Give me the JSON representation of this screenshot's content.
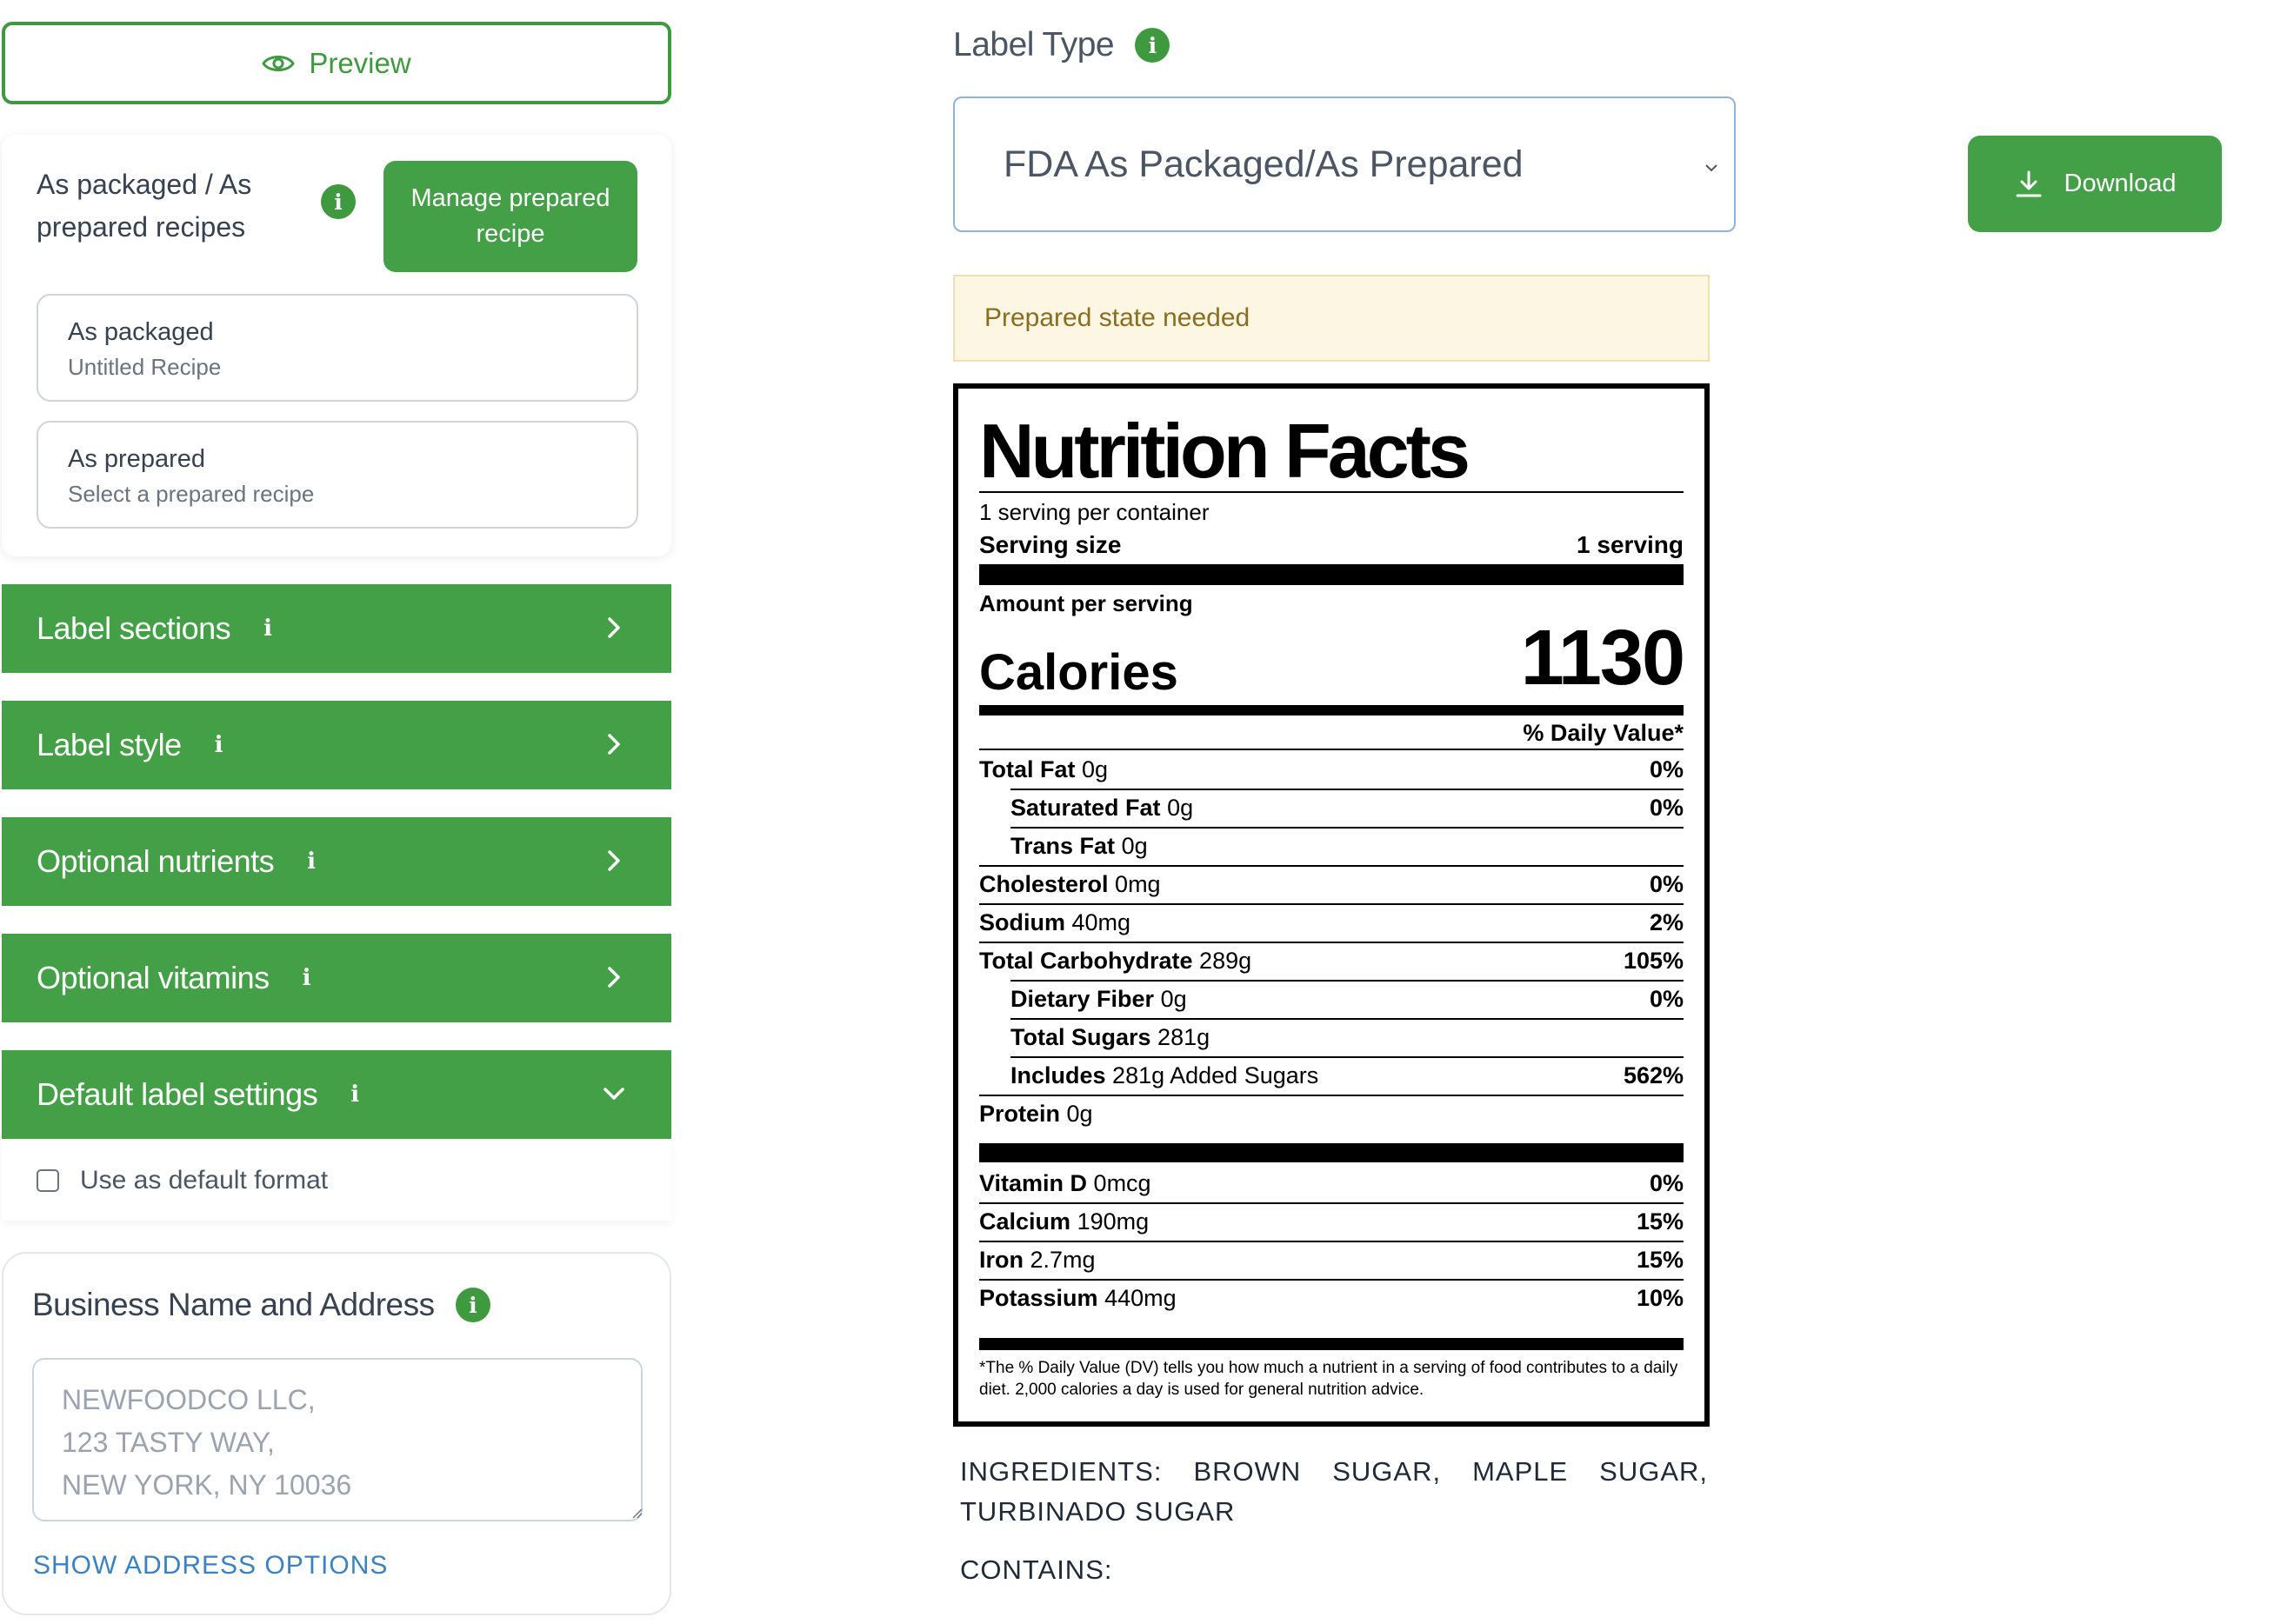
{
  "left": {
    "preview_label": "Preview",
    "recipes": {
      "title": "As packaged / As prepared recipes",
      "manage_button": "Manage prepared recipe",
      "packaged_title": "As packaged",
      "packaged_sub": "Untitled Recipe",
      "prepared_title": "As prepared",
      "prepared_sub": "Select a prepared recipe"
    },
    "accordions": [
      {
        "label": "Label sections",
        "expanded": false
      },
      {
        "label": "Label style",
        "expanded": false
      },
      {
        "label": "Optional nutrients",
        "expanded": false
      },
      {
        "label": "Optional vitamins",
        "expanded": false
      },
      {
        "label": "Default label settings",
        "expanded": true
      }
    ],
    "info_glyph": "i",
    "default_format_label": "Use as default format",
    "default_format_checked": false,
    "business": {
      "title": "Business Name and Address",
      "placeholder": "NEWFOODCO LLC,\n123 TASTY WAY,\nNEW YORK, NY 10036",
      "show_options": "SHOW ADDRESS OPTIONS"
    }
  },
  "right": {
    "label_type_title": "Label Type",
    "label_type_value": "FDA As Packaged/As Prepared",
    "download_label": "Download",
    "warning": "Prepared state needed",
    "nutrition": {
      "title": "Nutrition Facts",
      "servings_per_container": "1 serving per container",
      "serving_size_label": "Serving size",
      "serving_size_value": "1 serving",
      "amount_per_serving": "Amount per serving",
      "calories_label": "Calories",
      "calories_value": "1130",
      "dv_header": "% Daily Value*",
      "rows": [
        {
          "name": "Total Fat",
          "amount": "0g",
          "dv": "0%"
        },
        {
          "name": "Saturated Fat",
          "amount": "0g",
          "dv": "0%"
        },
        {
          "name": "Trans Fat",
          "amount": "0g",
          "dv": ""
        },
        {
          "name": "Cholesterol",
          "amount": "0mg",
          "dv": "0%"
        },
        {
          "name": "Sodium",
          "amount": "40mg",
          "dv": "2%"
        },
        {
          "name": "Total Carbohydrate",
          "amount": "289g",
          "dv": "105%"
        },
        {
          "name": "Dietary Fiber",
          "amount": "0g",
          "dv": "0%"
        },
        {
          "name": "Total Sugars",
          "amount": "281g",
          "dv": ""
        },
        {
          "name": "Includes",
          "amount": "281g Added Sugars",
          "dv": "562%"
        },
        {
          "name": "Protein",
          "amount": "0g",
          "dv": ""
        }
      ],
      "vitamins": [
        {
          "name": "Vitamin D",
          "amount": "0mcg",
          "dv": "0%"
        },
        {
          "name": "Calcium",
          "amount": "190mg",
          "dv": "15%"
        },
        {
          "name": "Iron",
          "amount": "2.7mg",
          "dv": "15%"
        },
        {
          "name": "Potassium",
          "amount": "440mg",
          "dv": "10%"
        }
      ],
      "footnote": "*The % Daily Value (DV) tells you how much a nutrient in a serving of food contributes to a daily diet. 2,000 calories a day is used for general nutrition advice."
    },
    "ingredients": "INGREDIENTS: BROWN SUGAR, MAPLE SUGAR, TURBINADO SUGAR",
    "contains": "CONTAINS:"
  }
}
